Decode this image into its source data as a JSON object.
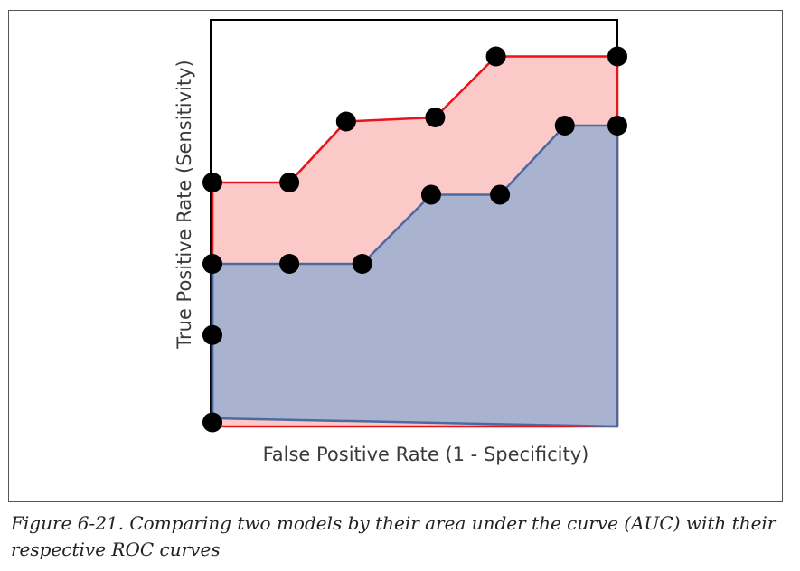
{
  "figure": {
    "caption": "Figure 6-21. Comparing two models by their area under the curve (AUC) with their respective ROC curves"
  },
  "colors": {
    "red_line": "#e8141a",
    "red_fill": "#fcc9c9",
    "blue_line": "#4a6aa0",
    "blue_fill": "#a9b2cf",
    "marker": "#000000",
    "frame": "#000000"
  },
  "chart_data": {
    "type": "area",
    "xlabel": "False Positive Rate (1 - Specificity)",
    "ylabel": "True Positive Rate (Sensitivity)",
    "xlim": [
      0,
      1
    ],
    "ylim": [
      0,
      1
    ],
    "tick_labels": "none",
    "grid": false,
    "legend": "none",
    "series": [
      {
        "color": "red",
        "x": [
          0.0,
          0.0,
          0.19,
          0.33,
          0.55,
          0.7,
          1.0,
          1.0
        ],
        "y": [
          0.0,
          0.6,
          0.6,
          0.75,
          0.76,
          0.91,
          0.91,
          0.0
        ]
      },
      {
        "color": "blue",
        "x": [
          0.0,
          0.0,
          0.19,
          0.37,
          0.54,
          0.71,
          0.87,
          1.0,
          1.0
        ],
        "y": [
          0.02,
          0.4,
          0.4,
          0.4,
          0.57,
          0.57,
          0.74,
          0.74,
          0.0
        ]
      }
    ],
    "extra_points": [
      {
        "x": 0.0,
        "y": 0.225
      },
      {
        "x": 0.0,
        "y": 0.01
      }
    ]
  }
}
